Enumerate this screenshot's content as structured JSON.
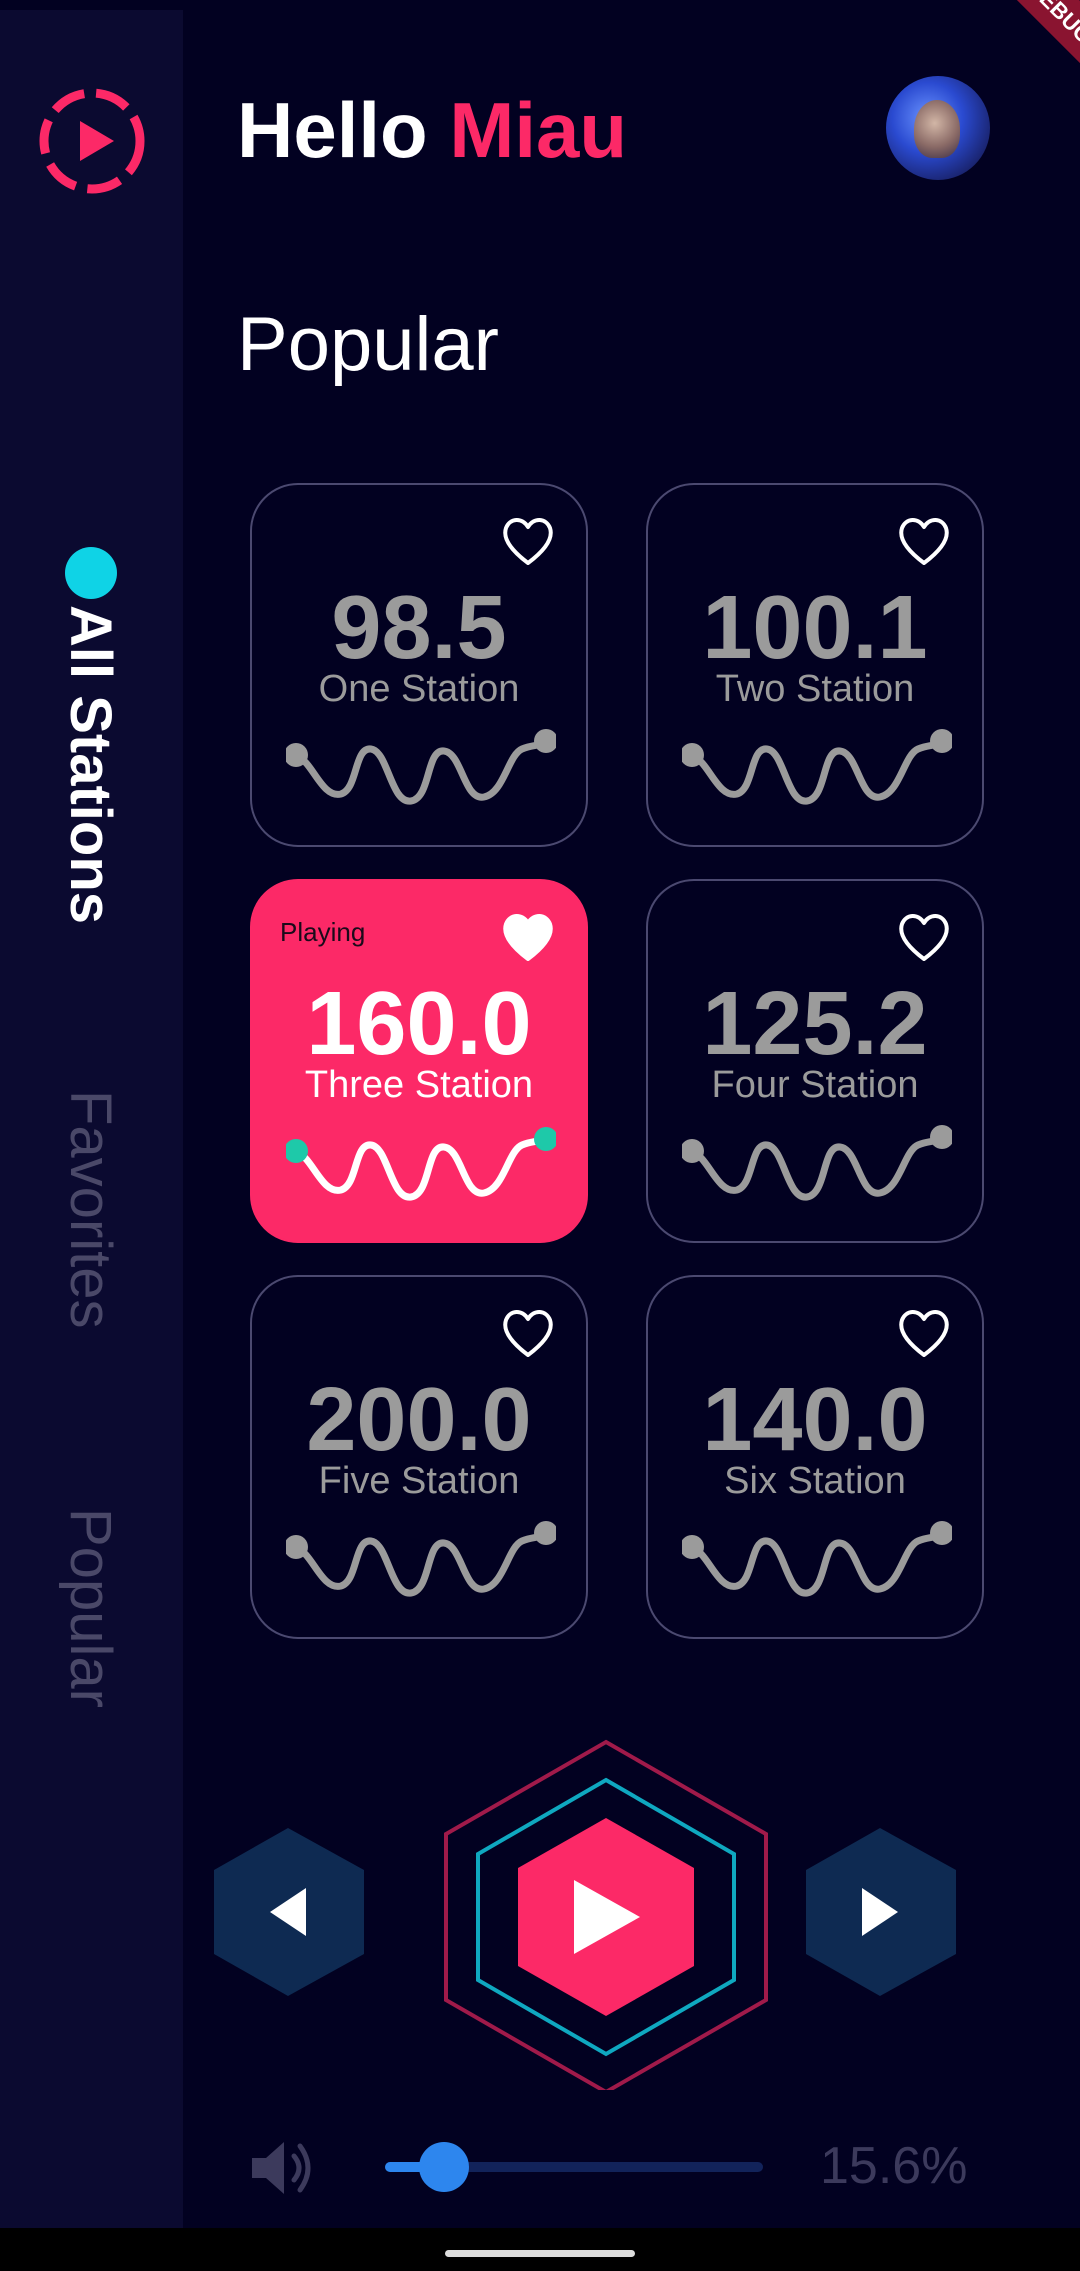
{
  "app": {
    "greeting_prefix": "Hello",
    "greeting_name": "Miau",
    "debug_label": "DEBUG"
  },
  "sidebar": {
    "items": [
      {
        "label": "All Stations",
        "active": true
      },
      {
        "label": "Favorites",
        "active": false
      },
      {
        "label": "Popular",
        "active": false
      }
    ]
  },
  "main": {
    "section_title": "Popular",
    "stations": [
      {
        "frequency": "98.5",
        "name": "One Station",
        "favorite": false,
        "playing": false
      },
      {
        "frequency": "100.1",
        "name": "Two Station",
        "favorite": false,
        "playing": false
      },
      {
        "frequency": "160.0",
        "name": "Three Station",
        "favorite": true,
        "playing": true,
        "status": "Playing"
      },
      {
        "frequency": "125.2",
        "name": "Four Station",
        "favorite": false,
        "playing": false
      },
      {
        "frequency": "200.0",
        "name": "Five Station",
        "favorite": false,
        "playing": false
      },
      {
        "frequency": "140.0",
        "name": "Six Station",
        "favorite": false,
        "playing": false
      }
    ]
  },
  "player": {
    "volume_text": "15.6%",
    "volume_level": 0.156
  },
  "icons": {
    "logo": "play-circle-icon",
    "prev": "previous-icon",
    "play": "play-icon",
    "next": "next-icon",
    "volume": "volume-icon",
    "heart": "heart-icon"
  },
  "colors": {
    "background": "#020121",
    "sidebar": "#0b0a30",
    "accent": "#fc2967",
    "cyan": "#0fd3e6",
    "teal": "#1ec9a9",
    "slider": "#2d86ee",
    "button_dark": "#0e2a52"
  }
}
